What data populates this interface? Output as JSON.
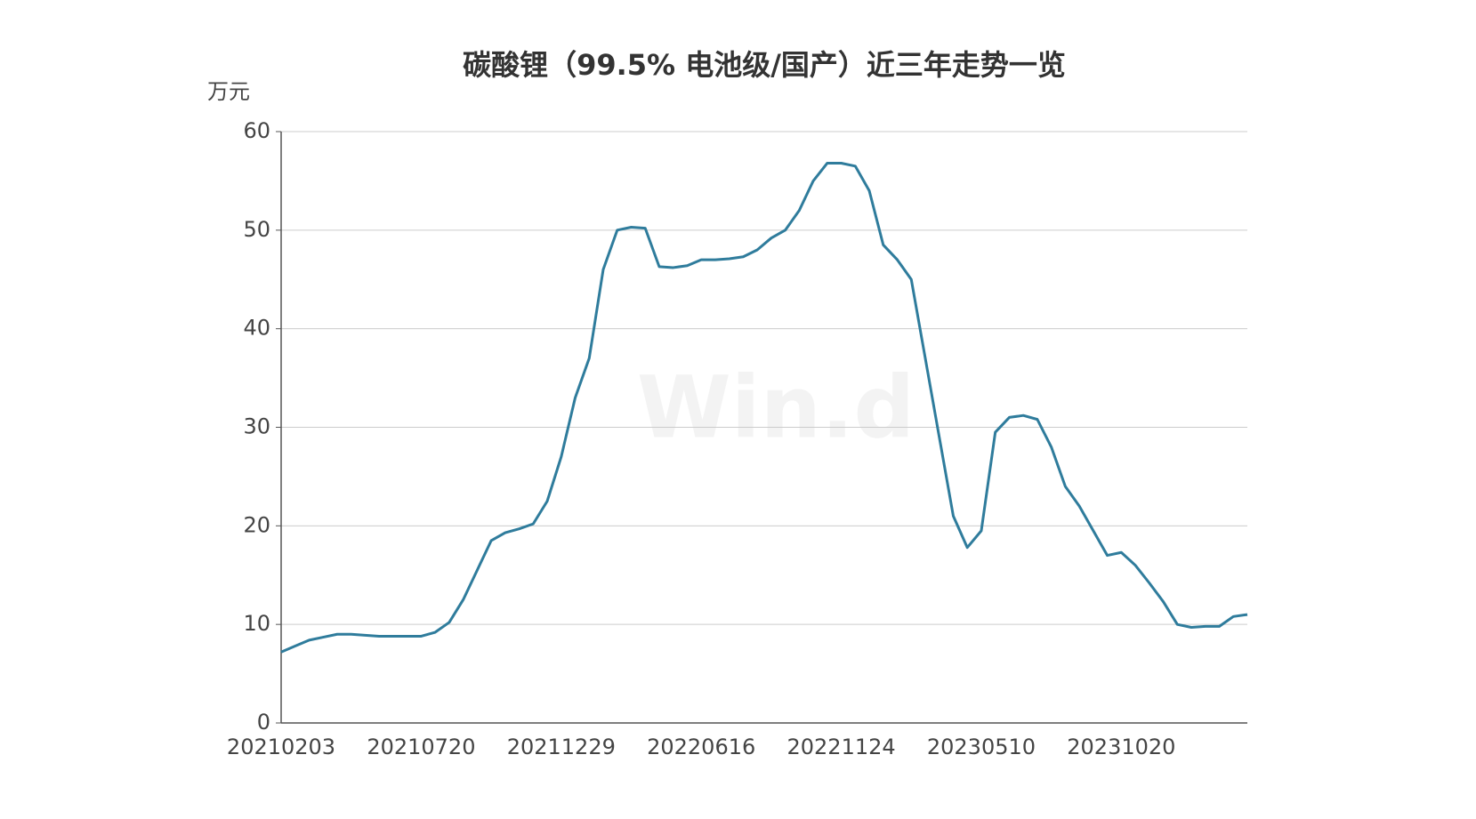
{
  "chart_data": {
    "type": "line",
    "title": "碳酸锂（99.5% 电池级/国产）近三年走势一览",
    "y_label": "万元",
    "watermark": "Win.d",
    "categories": [
      "20210203",
      null,
      null,
      null,
      null,
      null,
      null,
      null,
      null,
      null,
      "20210720",
      null,
      null,
      null,
      null,
      null,
      null,
      null,
      null,
      null,
      "20211229",
      null,
      null,
      null,
      null,
      null,
      null,
      null,
      null,
      null,
      "20220616",
      null,
      null,
      null,
      null,
      null,
      null,
      null,
      null,
      null,
      "20221124",
      null,
      null,
      null,
      null,
      null,
      null,
      null,
      null,
      null,
      "20230510",
      null,
      null,
      null,
      null,
      null,
      null,
      null,
      null,
      null,
      "20231020",
      null,
      null,
      null,
      null,
      null,
      null,
      null,
      null,
      null
    ],
    "series": [
      {
        "name": "碳酸锂",
        "color": "#2f7c9c",
        "values": [
          7.2,
          7.8,
          8.4,
          8.7,
          9.0,
          9.0,
          8.9,
          8.8,
          8.8,
          8.8,
          8.8,
          9.2,
          10.2,
          12.5,
          15.5,
          18.5,
          19.3,
          19.7,
          20.2,
          22.5,
          27,
          33,
          37,
          46,
          50,
          50.3,
          50.2,
          46.3,
          46.2,
          46.4,
          47,
          47,
          47.1,
          47.3,
          48,
          49.2,
          50,
          52,
          55,
          56.8,
          56.8,
          56.5,
          54,
          48.5,
          47,
          45,
          37,
          29,
          21,
          17.8,
          19.5,
          29.5,
          31,
          31.2,
          30.8,
          28,
          24,
          22,
          19.5,
          17,
          17.3,
          16,
          14.2,
          12.3,
          10,
          9.7,
          9.8,
          9.8,
          10.8,
          11.0
        ]
      }
    ],
    "ylim": [
      0,
      60
    ],
    "yticks": [
      0,
      10,
      20,
      30,
      40,
      50,
      60
    ],
    "grid": true
  }
}
